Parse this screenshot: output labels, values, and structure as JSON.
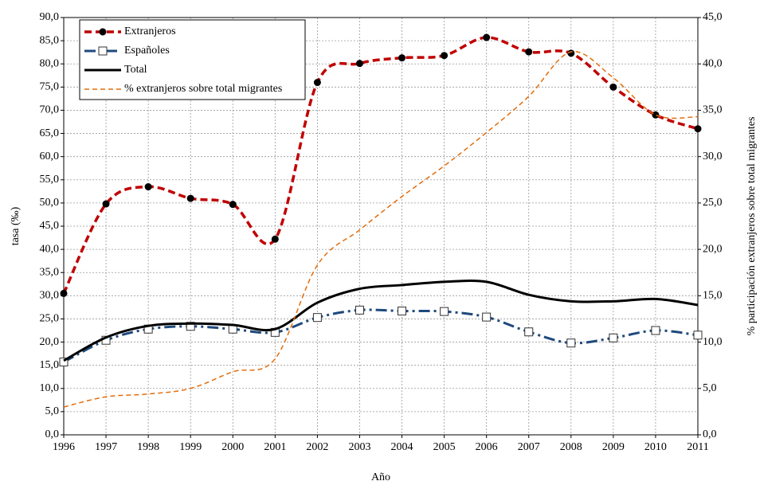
{
  "chart_data": {
    "type": "line",
    "xlabel": "Año",
    "ylabel": "tasa (‰)",
    "y2label": "% participación extranjeros sobre total migrantes",
    "x": [
      1996,
      1997,
      1998,
      1999,
      2000,
      2001,
      2002,
      2003,
      2004,
      2005,
      2006,
      2007,
      2008,
      2009,
      2010,
      2011
    ],
    "xlim": [
      1996,
      2011
    ],
    "xticks": [
      1996,
      1997,
      1998,
      1999,
      2000,
      2001,
      2002,
      2003,
      2004,
      2005,
      2006,
      2007,
      2008,
      2009,
      2010,
      2011
    ],
    "ylim": [
      0,
      90
    ],
    "yticks": [
      {
        "value": 0,
        "label": "0,0"
      },
      {
        "value": 5,
        "label": "5,0"
      },
      {
        "value": 10,
        "label": "10,0"
      },
      {
        "value": 15,
        "label": "15,0"
      },
      {
        "value": 20,
        "label": "20,0"
      },
      {
        "value": 25,
        "label": "25,0"
      },
      {
        "value": 30,
        "label": "30,0"
      },
      {
        "value": 35,
        "label": "35,0"
      },
      {
        "value": 40,
        "label": "40,0"
      },
      {
        "value": 45,
        "label": "45,0"
      },
      {
        "value": 50,
        "label": "50,0"
      },
      {
        "value": 55,
        "label": "55,0"
      },
      {
        "value": 60,
        "label": "60,0"
      },
      {
        "value": 65,
        "label": "65,0"
      },
      {
        "value": 70,
        "label": "70,0"
      },
      {
        "value": 75,
        "label": "75,0"
      },
      {
        "value": 80,
        "label": "80,0"
      },
      {
        "value": 85,
        "label": "85,0"
      },
      {
        "value": 90,
        "label": "90,0"
      }
    ],
    "y2lim": [
      0,
      45
    ],
    "y2ticks": [
      {
        "value": 0,
        "label": "0,0"
      },
      {
        "value": 5,
        "label": "5,0"
      },
      {
        "value": 10,
        "label": "10,0"
      },
      {
        "value": 15,
        "label": "15,0"
      },
      {
        "value": 20,
        "label": "20,0"
      },
      {
        "value": 25,
        "label": "25,0"
      },
      {
        "value": 30,
        "label": "30,0"
      },
      {
        "value": 35,
        "label": "35,0"
      },
      {
        "value": 40,
        "label": "40,0"
      },
      {
        "value": 45,
        "label": "45,0"
      }
    ],
    "grid": true,
    "legend": "upper left",
    "series": [
      {
        "name": "Extranjeros",
        "color": "#c00000",
        "marker": "circle",
        "values": [
          30.5,
          49.8,
          53.5,
          51.0,
          49.7,
          42.2,
          76.0,
          80.1,
          81.3,
          81.8,
          85.7,
          82.6,
          82.3,
          75.0,
          69.0,
          66.0
        ]
      },
      {
        "name": "Españoles",
        "color": "#1f497d",
        "marker": "square",
        "values": [
          15.7,
          20.4,
          22.8,
          23.4,
          22.8,
          22.1,
          25.3,
          26.9,
          26.7,
          26.6,
          25.4,
          22.2,
          19.8,
          20.9,
          22.5,
          21.5
        ]
      },
      {
        "name": "Total",
        "color": "#000000",
        "values": [
          16.0,
          21.0,
          23.5,
          24.0,
          23.7,
          22.8,
          28.5,
          31.5,
          32.3,
          33.0,
          33.0,
          30.2,
          28.8,
          28.8,
          29.3,
          28.0
        ]
      },
      {
        "name": "% extranjeros sobre total migrantes",
        "color": "#e46c0a",
        "axis": "y2",
        "values": [
          3.0,
          4.1,
          4.4,
          5.0,
          6.8,
          8.2,
          18.3,
          22.1,
          25.7,
          29.0,
          32.6,
          36.5,
          41.3,
          38.5,
          34.5,
          34.3
        ]
      }
    ]
  }
}
